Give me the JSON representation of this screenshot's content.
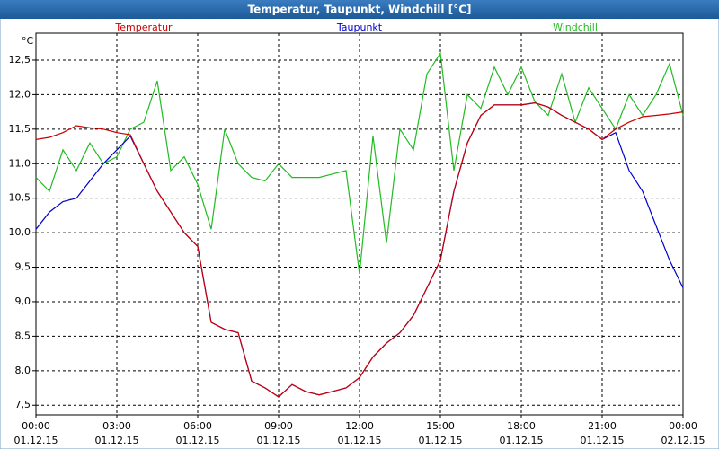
{
  "chart_data": {
    "type": "line",
    "title": "Temperatur, Taupunkt, Windchill [°C]",
    "y_unit": "°C",
    "x": [
      0,
      0.5,
      1,
      1.5,
      2,
      2.5,
      3,
      3.5,
      4,
      4.5,
      5,
      5.5,
      6,
      6.5,
      7,
      7.5,
      8,
      8.5,
      9,
      9.5,
      10,
      10.5,
      11,
      11.5,
      12,
      12.5,
      13,
      13.5,
      14,
      14.5,
      15,
      15.5,
      16,
      16.5,
      17,
      17.5,
      18,
      18.5,
      19,
      19.5,
      20,
      20.5,
      21,
      21.5,
      22,
      22.5,
      23,
      23.5,
      24
    ],
    "series": [
      {
        "name": "Temperatur",
        "color": "#cc0000",
        "values": [
          11.35,
          11.38,
          11.45,
          11.55,
          11.52,
          11.5,
          11.45,
          11.42,
          11.0,
          10.6,
          10.3,
          10.0,
          9.8,
          8.7,
          8.6,
          8.55,
          7.85,
          7.75,
          7.62,
          7.8,
          7.7,
          7.65,
          7.7,
          7.75,
          7.9,
          8.2,
          8.4,
          8.55,
          8.8,
          9.2,
          9.6,
          10.6,
          11.3,
          11.7,
          11.85,
          11.85,
          11.85,
          11.88,
          11.82,
          11.7,
          11.6,
          11.5,
          11.35,
          11.5,
          11.6,
          11.68,
          11.7,
          11.72,
          11.75
        ]
      },
      {
        "name": "Taupunkt",
        "color": "#0000cc",
        "values": [
          10.05,
          10.3,
          10.45,
          10.5,
          10.75,
          11.0,
          11.2,
          11.4,
          11.0,
          10.6,
          10.3,
          10.0,
          9.8,
          8.7,
          8.6,
          8.55,
          7.85,
          7.75,
          7.62,
          7.8,
          7.7,
          7.65,
          7.7,
          7.75,
          7.9,
          8.2,
          8.4,
          8.55,
          8.8,
          9.2,
          9.6,
          10.6,
          11.3,
          11.7,
          11.85,
          11.85,
          11.85,
          11.88,
          11.82,
          11.7,
          11.6,
          11.5,
          11.35,
          11.45,
          10.9,
          10.6,
          10.1,
          9.6,
          9.2
        ]
      },
      {
        "name": "Windchill",
        "color": "#22bb22",
        "values": [
          10.8,
          10.6,
          11.2,
          10.9,
          11.3,
          11.0,
          11.1,
          11.5,
          11.6,
          12.2,
          10.9,
          11.1,
          10.7,
          10.05,
          11.5,
          11.0,
          10.8,
          10.75,
          11.0,
          10.8,
          10.8,
          10.8,
          10.85,
          10.9,
          9.4,
          11.4,
          9.85,
          11.5,
          11.2,
          12.3,
          12.6,
          10.9,
          12.0,
          11.8,
          12.4,
          12.0,
          12.4,
          11.9,
          11.7,
          12.3,
          11.6,
          12.1,
          11.8,
          11.5,
          12.0,
          11.7,
          12.0,
          12.45,
          11.7
        ]
      }
    ],
    "xlim": [
      0,
      24
    ],
    "xticks": [
      {
        "value": 0,
        "label": [
          "00:00",
          "01.12.15"
        ]
      },
      {
        "value": 3,
        "label": [
          "03:00",
          "01.12.15"
        ]
      },
      {
        "value": 6,
        "label": [
          "06:00",
          "01.12.15"
        ]
      },
      {
        "value": 9,
        "label": [
          "09:00",
          "01.12.15"
        ]
      },
      {
        "value": 12,
        "label": [
          "12:00",
          "01.12.15"
        ]
      },
      {
        "value": 15,
        "label": [
          "15:00",
          "01.12.15"
        ]
      },
      {
        "value": 18,
        "label": [
          "18:00",
          "01.12.15"
        ]
      },
      {
        "value": 21,
        "label": [
          "21:00",
          "01.12.15"
        ]
      },
      {
        "value": 24,
        "label": [
          "00:00",
          "02.12.15"
        ]
      }
    ],
    "ylim": [
      7.36,
      12.89
    ],
    "yticks": [
      {
        "value": 7.5,
        "label": "7,5"
      },
      {
        "value": 8,
        "label": "8,0"
      },
      {
        "value": 8.5,
        "label": "8,5"
      },
      {
        "value": 9,
        "label": "9,0"
      },
      {
        "value": 9.5,
        "label": "9,5"
      },
      {
        "value": 10,
        "label": "10,0"
      },
      {
        "value": 10.5,
        "label": "10,5"
      },
      {
        "value": 11,
        "label": "11,0"
      },
      {
        "value": 11.5,
        "label": "11,5"
      },
      {
        "value": 12,
        "label": "12,0"
      },
      {
        "value": 12.5,
        "label": "12,5"
      }
    ],
    "grid": true
  }
}
